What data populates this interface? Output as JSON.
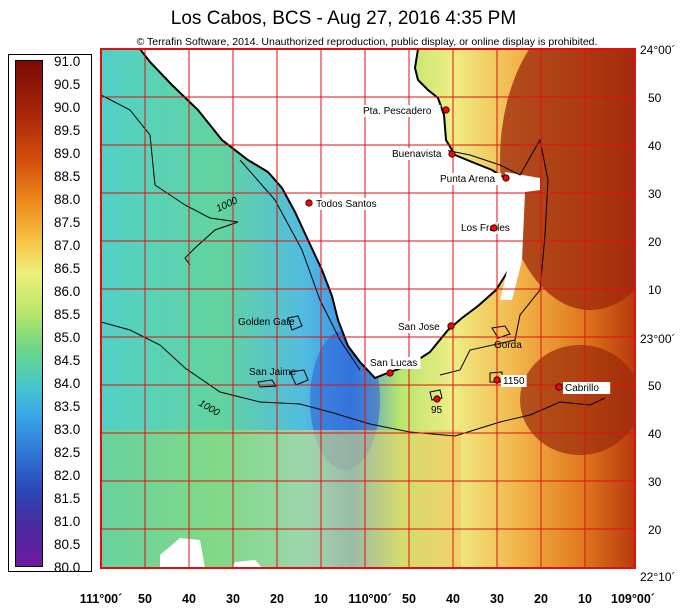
{
  "title": "Los Cabos, BCS - Aug 27, 2016 4:35 PM",
  "copyright": "© Terrafin Software,  2014.  Unauthorized reproduction, public display, or online display is prohibited.",
  "colors": {
    "grid": "#e01010",
    "land": "#ffffff",
    "coast": "#000000",
    "contour": "#000000",
    "marker": "#ff0000"
  },
  "legend": {
    "ticks": [
      "91.0",
      "90.5",
      "90.0",
      "89.5",
      "89.0",
      "88.5",
      "88.0",
      "87.5",
      "87.0",
      "86.5",
      "86.0",
      "85.5",
      "85.0",
      "84.5",
      "84.0",
      "83.5",
      "83.0",
      "82.5",
      "82.0",
      "81.5",
      "81.0",
      "80.5",
      "80.0"
    ]
  },
  "axes": {
    "lon_labels": [
      "111°00´",
      "50",
      "40",
      "30",
      "20",
      "10",
      "110°00´",
      "50",
      "40",
      "30",
      "20",
      "10",
      "109°00´"
    ],
    "lat_labels": [
      "24°00´",
      "50",
      "40",
      "30",
      "20",
      "10",
      "23°00´",
      "50",
      "40",
      "30",
      "20",
      "22°10´"
    ]
  },
  "places": [
    {
      "name": "Pta. Pescadero",
      "icon": "red-dot"
    },
    {
      "name": "Buenavista",
      "icon": "red-dot"
    },
    {
      "name": "Punta Arena",
      "icon": "red-dot"
    },
    {
      "name": "Todos Santos",
      "icon": "red-dot"
    },
    {
      "name": "Los Frailes",
      "icon": "red-dot"
    },
    {
      "name": "Golden Gate",
      "icon": "none"
    },
    {
      "name": "San Jose",
      "icon": "red-dot"
    },
    {
      "name": "Gorda",
      "icon": "none"
    },
    {
      "name": "San Lucas",
      "icon": "red-dot"
    },
    {
      "name": "San Jaime",
      "icon": "none"
    },
    {
      "name": "1150",
      "icon": "red-dot"
    },
    {
      "name": "Cabrillo",
      "icon": "red-dot"
    },
    {
      "name": "95",
      "icon": "red-dot"
    }
  ],
  "contours": [
    "1000",
    "1000"
  ]
}
